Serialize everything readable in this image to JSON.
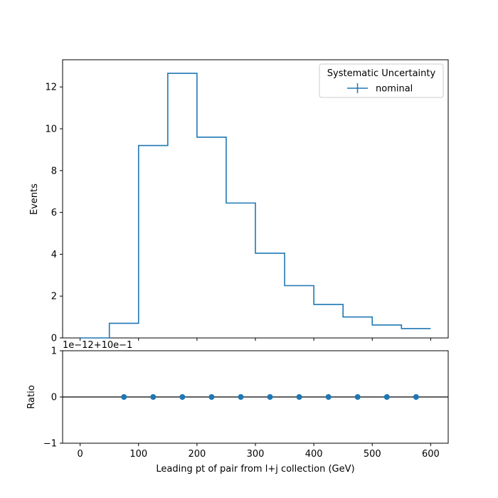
{
  "chart_data": [
    {
      "type": "step",
      "panel": "main",
      "ylabel": "Events",
      "xlim": [
        -30,
        630
      ],
      "ylim": [
        0,
        13.3
      ],
      "bin_edges": [
        0,
        50,
        100,
        150,
        200,
        250,
        300,
        350,
        400,
        450,
        500,
        550,
        600
      ],
      "series": [
        {
          "name": "nominal",
          "color": "#1f77b4",
          "values": [
            0.0,
            0.7,
            9.2,
            12.65,
            9.6,
            6.45,
            4.05,
            2.5,
            1.6,
            1.0,
            0.62,
            0.45
          ]
        }
      ],
      "yticks": [
        "0",
        "2",
        "4",
        "6",
        "8",
        "10",
        "12"
      ],
      "legend": {
        "title": "Systematic Uncertainty",
        "location": "upper-right",
        "entries": [
          "nominal"
        ]
      }
    },
    {
      "type": "scatter",
      "panel": "ratio",
      "ylabel": "Ratio",
      "xlabel": "Leading pt of pair from l+j collection (GeV)",
      "xlim": [
        -30,
        630
      ],
      "ylim": [
        -1,
        1
      ],
      "offset_text": "1e−12+10e−1",
      "reference_line": 0,
      "x": [
        75,
        125,
        175,
        225,
        275,
        325,
        375,
        425,
        475,
        525,
        575
      ],
      "y": [
        0,
        0,
        0,
        0,
        0,
        0,
        0,
        0,
        0,
        0,
        0
      ],
      "color": "#1f77b4",
      "xticks": [
        "0",
        "100",
        "200",
        "300",
        "400",
        "500",
        "600"
      ],
      "yticks": [
        "−1",
        "0",
        "1"
      ]
    }
  ]
}
